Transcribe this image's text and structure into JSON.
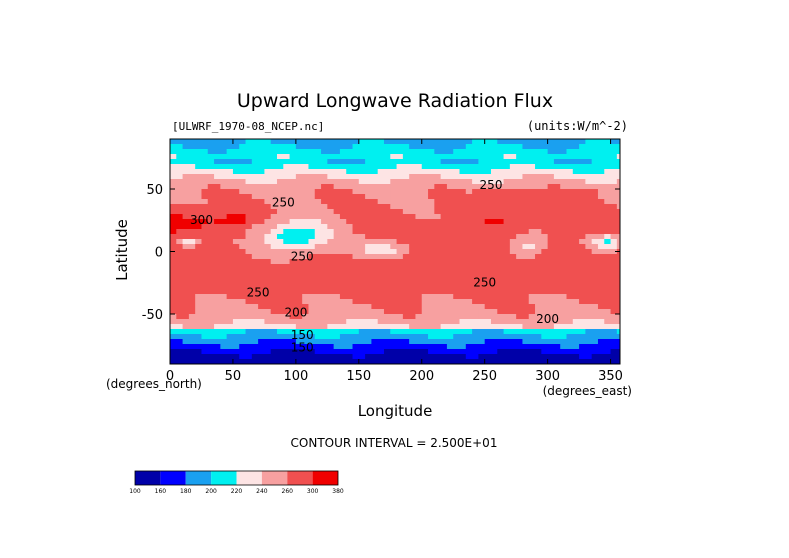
{
  "chart_data": {
    "type": "heatmap",
    "title": "Upward Longwave Radiation Flux",
    "file_label": "[ULWRF_1970-08_NCEP.nc]",
    "units_label": "(units:W/m^-2)",
    "xlabel": "Longitude",
    "ylabel": "Latitude",
    "x_units_label": "(degrees_east)",
    "y_units_label": "(degrees_north)",
    "xlim": [
      0,
      357.5
    ],
    "ylim": [
      -90,
      90
    ],
    "x_ticks": [
      0,
      50,
      100,
      150,
      200,
      250,
      300,
      350
    ],
    "y_ticks": [
      50,
      0,
      -50
    ],
    "contour_interval_label": "CONTOUR INTERVAL = 2.500E+01",
    "contour_labels": [
      {
        "text": "300",
        "lon": 25,
        "lat": 22
      },
      {
        "text": "250",
        "lon": 90,
        "lat": 36
      },
      {
        "text": "250",
        "lon": 105,
        "lat": -7
      },
      {
        "text": "250",
        "lon": 70,
        "lat": -36
      },
      {
        "text": "200",
        "lon": 100,
        "lat": -52
      },
      {
        "text": "150",
        "lon": 105,
        "lat": -70
      },
      {
        "text": "150",
        "lon": 105,
        "lat": -80
      },
      {
        "text": "250",
        "lon": 255,
        "lat": 50
      },
      {
        "text": "250",
        "lon": 250,
        "lat": -28
      },
      {
        "text": "200",
        "lon": 300,
        "lat": -57
      }
    ],
    "colorbar": {
      "ticks": [
        "100",
        "160",
        "180",
        "200",
        "220",
        "240",
        "260",
        "300",
        "380"
      ],
      "colors": [
        "#0000a8",
        "#0000ff",
        "#1aa0f0",
        "#00f0f0",
        "#fde4e4",
        "#f7a0a0",
        "#f05050",
        "#f00000"
      ]
    },
    "grid": false
  }
}
